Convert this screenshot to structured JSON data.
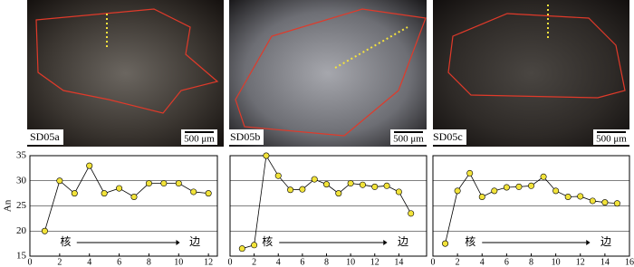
{
  "images": [
    {
      "label": "SD05a",
      "scale": "500 μm"
    },
    {
      "label": "SD05b",
      "scale": "500 μm"
    },
    {
      "label": "SD05c",
      "scale": "500 μm"
    }
  ],
  "chart_data": [
    {
      "type": "line",
      "ylabel": "An",
      "annotation_start": "核",
      "annotation_end": "边",
      "x": [
        1,
        2,
        3,
        4,
        5,
        6,
        7,
        8,
        9,
        10,
        11,
        12
      ],
      "values": [
        20,
        30,
        27.5,
        33,
        27.5,
        28.5,
        26.8,
        29.5,
        29.5,
        29.5,
        27.8,
        27.5
      ],
      "line_color": "#000000",
      "marker_color": "#f2e33a",
      "xlim": [
        0,
        12.6
      ],
      "xticks": [
        0,
        2,
        4,
        6,
        8,
        10,
        12
      ],
      "ylim": [
        15,
        35
      ],
      "yticks": [
        15,
        20,
        25,
        30,
        35
      ],
      "grid": true
    },
    {
      "type": "line",
      "annotation_start": "核",
      "annotation_end": "边",
      "x": [
        1,
        2,
        3,
        4,
        5,
        6,
        7,
        8,
        9,
        10,
        11,
        12,
        13,
        14,
        15
      ],
      "values": [
        16.5,
        17.2,
        35,
        31,
        28.2,
        28.3,
        30.3,
        29.3,
        27.5,
        29.5,
        29.2,
        28.8,
        29,
        27.8,
        23.5
      ],
      "line_color": "#000000",
      "marker_color": "#f2e33a",
      "xlim": [
        0,
        16.3
      ],
      "xticks": [
        0,
        2,
        4,
        6,
        8,
        10,
        12,
        14
      ],
      "ylim": [
        15,
        35
      ],
      "yticks": [
        15,
        20,
        25,
        30,
        35
      ],
      "grid": true
    },
    {
      "type": "line",
      "annotation_start": "核",
      "annotation_end": "边",
      "x": [
        1,
        2,
        3,
        4,
        5,
        6,
        7,
        8,
        9,
        10,
        11,
        12,
        13,
        14,
        15
      ],
      "values": [
        17.5,
        28,
        31.5,
        26.8,
        28,
        28.7,
        28.8,
        29,
        30.8,
        28,
        26.8,
        26.9,
        26,
        25.7,
        25.5
      ],
      "line_color": "#000000",
      "marker_color": "#f2e33a",
      "xlim": [
        0,
        16
      ],
      "xticks": [
        0,
        2,
        4,
        6,
        8,
        10,
        12,
        14,
        16
      ],
      "ylim": [
        15,
        35
      ],
      "yticks": [
        15,
        20,
        25,
        30,
        35
      ],
      "grid": true
    }
  ]
}
